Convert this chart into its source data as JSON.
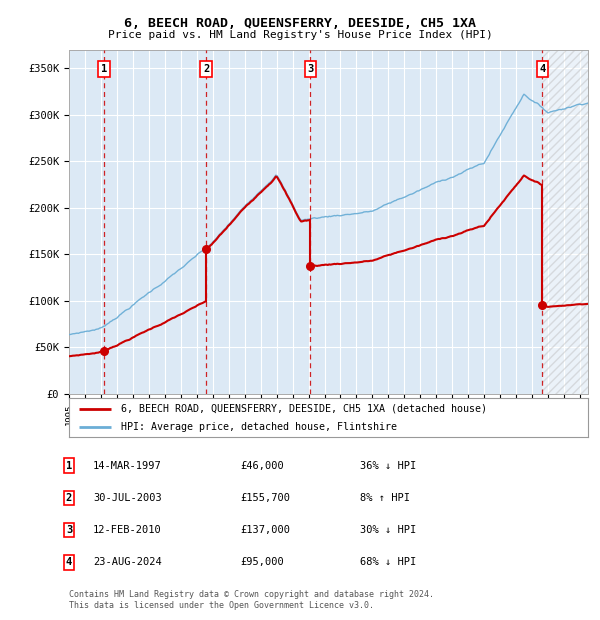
{
  "title": "6, BEECH ROAD, QUEENSFERRY, DEESIDE, CH5 1XA",
  "subtitle": "Price paid vs. HM Land Registry's House Price Index (HPI)",
  "background_color": "#dce9f5",
  "plot_bg_color": "#dce9f5",
  "hpi_color": "#6baed6",
  "price_color": "#cc0000",
  "marker_color": "#cc0000",
  "dashed_color": "#cc0000",
  "ylim": [
    0,
    370000
  ],
  "yticks": [
    0,
    50000,
    100000,
    150000,
    200000,
    250000,
    300000,
    350000
  ],
  "ytick_labels": [
    "£0",
    "£50K",
    "£100K",
    "£150K",
    "£200K",
    "£250K",
    "£300K",
    "£350K"
  ],
  "xlim_start": 1995.0,
  "xlim_end": 2027.5,
  "transactions": [
    {
      "num": 1,
      "date": "14-MAR-1997",
      "year": 1997.2,
      "price": 46000,
      "pct": "36%",
      "dir": "↓"
    },
    {
      "num": 2,
      "date": "30-JUL-2003",
      "year": 2003.58,
      "price": 155700,
      "pct": "8%",
      "dir": "↑"
    },
    {
      "num": 3,
      "date": "12-FEB-2010",
      "year": 2010.12,
      "price": 137000,
      "pct": "30%",
      "dir": "↓"
    },
    {
      "num": 4,
      "date": "23-AUG-2024",
      "year": 2024.65,
      "price": 95000,
      "pct": "68%",
      "dir": "↓"
    }
  ],
  "legend_line1": "6, BEECH ROAD, QUEENSFERRY, DEESIDE, CH5 1XA (detached house)",
  "legend_line2": "HPI: Average price, detached house, Flintshire",
  "footer1": "Contains HM Land Registry data © Crown copyright and database right 2024.",
  "footer2": "This data is licensed under the Open Government Licence v3.0.",
  "hatch_region_start": 2024.65,
  "hatch_region_end": 2027.5,
  "table_rows": [
    {
      "num": "1",
      "date": "14-MAR-1997",
      "price": "£46,000",
      "pct": "36% ↓ HPI"
    },
    {
      "num": "2",
      "date": "30-JUL-2003",
      "price": "£155,700",
      "pct": "8% ↑ HPI"
    },
    {
      "num": "3",
      "date": "12-FEB-2010",
      "price": "£137,000",
      "pct": "30% ↓ HPI"
    },
    {
      "num": "4",
      "date": "23-AUG-2024",
      "price": "£95,000",
      "pct": "68% ↓ HPI"
    }
  ]
}
